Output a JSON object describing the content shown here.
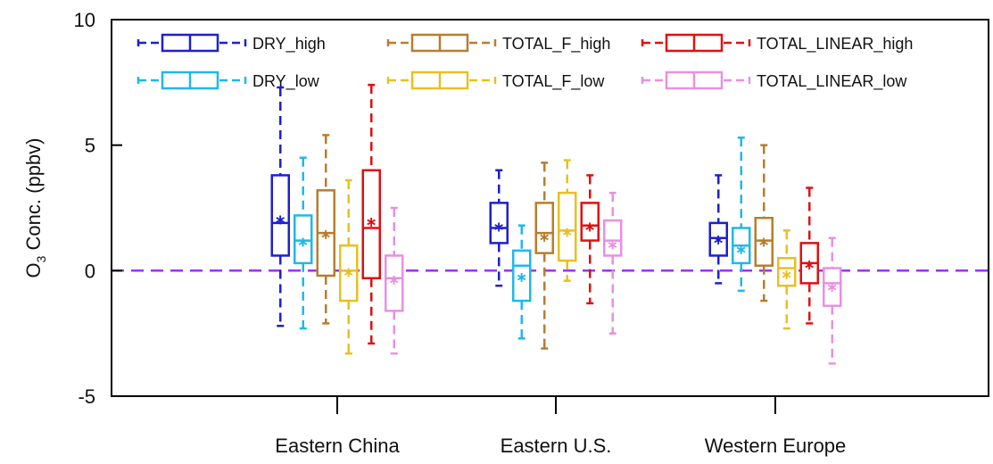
{
  "chart_data": {
    "type": "box",
    "ylabel_main": "O",
    "ylabel_sub": "3",
    "ylabel_rest": " Conc. (ppbv)",
    "ylim": [
      -5,
      10
    ],
    "yticks": [
      {
        "value": 10,
        "label": "10"
      },
      {
        "value": 5,
        "label": "5"
      },
      {
        "value": 0,
        "label": "0"
      },
      {
        "value": -5,
        "label": "-5"
      }
    ],
    "reference_line": {
      "y": 0,
      "color": "#9b30ff",
      "style": "dashed"
    },
    "legend_placement": "top",
    "categories": [
      "Eastern China",
      "Eastern U.S.",
      "Western Europe"
    ],
    "series": [
      {
        "name": "DRY_high",
        "color": "#1f1fcf",
        "boxes": [
          {
            "min": -2.2,
            "q1": 0.6,
            "median": 1.9,
            "q3": 3.8,
            "max": 7.3,
            "mean": 2.1
          },
          {
            "min": -0.6,
            "q1": 1.1,
            "median": 1.7,
            "q3": 2.7,
            "max": 4.0,
            "mean": 1.8
          },
          {
            "min": -0.5,
            "q1": 0.6,
            "median": 1.3,
            "q3": 1.9,
            "max": 3.8,
            "mean": 1.3
          }
        ]
      },
      {
        "name": "DRY_low",
        "color": "#1fb8e8",
        "boxes": [
          {
            "min": -2.3,
            "q1": 0.3,
            "median": 1.2,
            "q3": 2.2,
            "max": 4.5,
            "mean": 1.2
          },
          {
            "min": -2.7,
            "q1": -1.2,
            "median": 0.2,
            "q3": 0.8,
            "max": 1.8,
            "mean": -0.2
          },
          {
            "min": -0.8,
            "q1": 0.3,
            "median": 1.0,
            "q3": 1.7,
            "max": 5.3,
            "mean": 0.9
          }
        ]
      },
      {
        "name": "TOTAL_F_high",
        "color": "#b87d2e",
        "boxes": [
          {
            "min": -2.1,
            "q1": -0.2,
            "median": 1.5,
            "q3": 3.2,
            "max": 5.4,
            "mean": 1.5
          },
          {
            "min": -3.1,
            "q1": 0.7,
            "median": 1.5,
            "q3": 2.7,
            "max": 4.3,
            "mean": 1.4
          },
          {
            "min": -1.2,
            "q1": 0.2,
            "median": 1.2,
            "q3": 2.1,
            "max": 5.0,
            "mean": 1.2
          }
        ]
      },
      {
        "name": "TOTAL_F_low",
        "color": "#e8c020",
        "boxes": [
          {
            "min": -3.3,
            "q1": -1.2,
            "median": 0.0,
            "q3": 1.0,
            "max": 3.6,
            "mean": 0.0
          },
          {
            "min": -0.4,
            "q1": 0.4,
            "median": 1.6,
            "q3": 3.1,
            "max": 4.4,
            "mean": 1.6
          },
          {
            "min": -2.3,
            "q1": -0.6,
            "median": 0.1,
            "q3": 0.5,
            "max": 1.6,
            "mean": -0.1
          }
        ]
      },
      {
        "name": "TOTAL_LINEAR_high",
        "color": "#e01010",
        "boxes": [
          {
            "min": -2.9,
            "q1": -0.3,
            "median": 1.7,
            "q3": 4.0,
            "max": 7.4,
            "mean": 2.0
          },
          {
            "min": -1.3,
            "q1": 1.2,
            "median": 1.8,
            "q3": 2.7,
            "max": 3.8,
            "mean": 1.8
          },
          {
            "min": -2.1,
            "q1": -0.5,
            "median": 0.3,
            "q3": 1.1,
            "max": 3.3,
            "mean": 0.3
          }
        ]
      },
      {
        "name": "TOTAL_LINEAR_low",
        "color": "#e890e0",
        "boxes": [
          {
            "min": -3.3,
            "q1": -1.6,
            "median": -0.3,
            "q3": 0.6,
            "max": 2.5,
            "mean": -0.3
          },
          {
            "min": -2.5,
            "q1": 0.6,
            "median": 1.2,
            "q3": 2.0,
            "max": 3.1,
            "mean": 1.1
          },
          {
            "min": -3.7,
            "q1": -1.4,
            "median": -0.5,
            "q3": 0.1,
            "max": 1.3,
            "mean": -0.6
          }
        ]
      }
    ]
  }
}
